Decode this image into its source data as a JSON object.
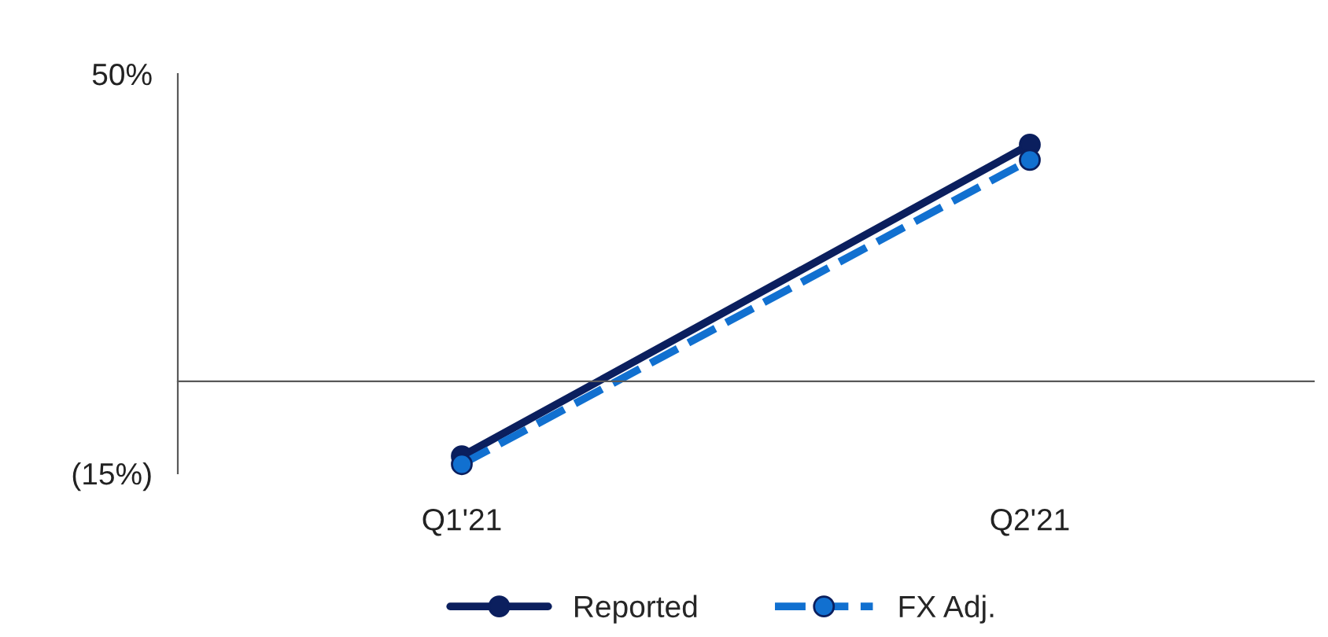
{
  "chart_data": {
    "type": "line",
    "categories": [
      "Q1'21",
      "Q2'21"
    ],
    "series": [
      {
        "name": "Reported",
        "color": "#0b1f5e",
        "values": [
          -12.2,
          38.5
        ],
        "line_style": "solid"
      },
      {
        "name": "FX Adj.",
        "color": "#1170d0",
        "values": [
          -13.5,
          36
        ],
        "line_style": "dashed"
      }
    ],
    "ylim": [
      -15,
      50
    ],
    "yticks": [
      {
        "value": -15,
        "label": "(15%)"
      },
      {
        "value": 50,
        "label": "50%"
      }
    ],
    "marker": "circle",
    "grid": false,
    "legend": "bottom"
  }
}
